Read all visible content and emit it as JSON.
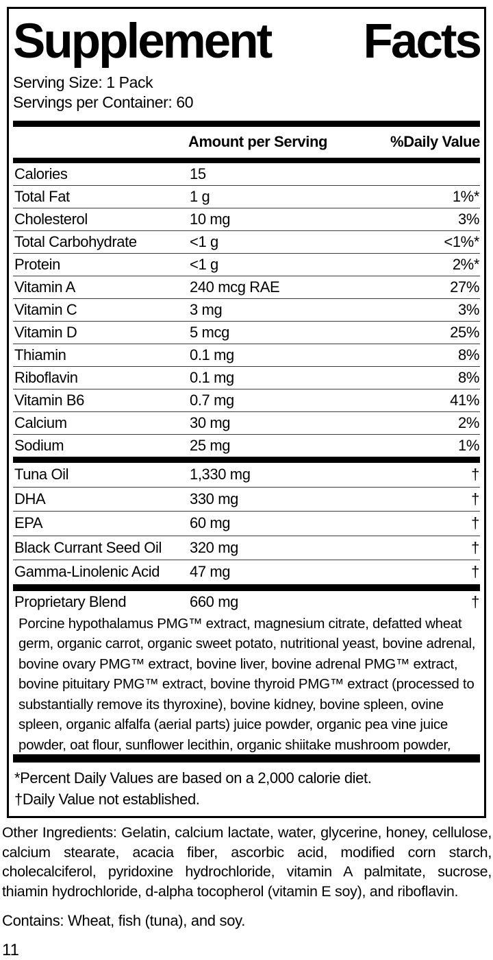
{
  "title_words": [
    "Supplement",
    "Facts"
  ],
  "serving": {
    "size": "Serving Size: 1 Pack",
    "per_container": "Servings per Container: 60"
  },
  "table": {
    "header": {
      "amount": "Amount per Serving",
      "daily_value": "%Daily Value"
    },
    "sections": [
      {
        "rows": [
          {
            "name": "Calories",
            "amount": "15",
            "dv": ""
          },
          {
            "name": "Total Fat",
            "amount": "1 g",
            "dv": "1%*"
          },
          {
            "name": "Cholesterol",
            "amount": "10 mg",
            "dv": "3%"
          },
          {
            "name": "Total Carbohydrate",
            "amount": "<1 g",
            "dv": "<1%*"
          },
          {
            "name": "Protein",
            "amount": "<1 g",
            "dv": "2%*"
          },
          {
            "name": "Vitamin A",
            "amount": "240 mcg RAE",
            "dv": "27%"
          },
          {
            "name": "Vitamin C",
            "amount": "3 mg",
            "dv": "3%"
          },
          {
            "name": "Vitamin D",
            "amount": "5 mcg",
            "dv": "25%"
          },
          {
            "name": "Thiamin",
            "amount": "0.1 mg",
            "dv": "8%"
          },
          {
            "name": "Riboflavin",
            "amount": "0.1 mg",
            "dv": "8%"
          },
          {
            "name": "Vitamin B6",
            "amount": "0.7 mg",
            "dv": "41%"
          },
          {
            "name": "Calcium",
            "amount": "30 mg",
            "dv": "2%"
          },
          {
            "name": "Sodium",
            "amount": "25 mg",
            "dv": "1%"
          }
        ]
      },
      {
        "rows": [
          {
            "name": "Tuna Oil",
            "amount": "1,330 mg",
            "dv": "†"
          },
          {
            "name": "DHA",
            "amount": "330 mg",
            "dv": "†"
          },
          {
            "name": "EPA",
            "amount": "60 mg",
            "dv": "†"
          },
          {
            "name": "Black Currant Seed Oil",
            "amount": "320 mg",
            "dv": "†"
          },
          {
            "name": "Gamma-Linolenic Acid",
            "amount": "47 mg",
            "dv": "†"
          }
        ]
      },
      {
        "rows": [
          {
            "name": "Proprietary Blend",
            "amount": "660 mg",
            "dv": "†"
          }
        ],
        "note": "Porcine hypothalamus PMG™ extract, magnesium citrate, defatted wheat germ, organic carrot, organic sweet potato, nutritional yeast, bovine adrenal, bovine ovary PMG™ extract, bovine liver, bovine adrenal PMG™ extract, bovine pituitary PMG™ extract, bovine thyroid PMG™ extract (processed to substantially remove its thyroxine), bovine kidney, bovine spleen, ovine spleen, organic alfalfa (aerial parts) juice powder, organic pea vine juice powder, oat flour, sunflower lecithin, organic shiitake mushroom powder, organic reishi mushroom powder, and rice bran."
      }
    ]
  },
  "footnotes": [
    "*Percent Daily Values are based on a 2,000 calorie diet.",
    "†Daily Value not established."
  ],
  "other_ingredients": "Other Ingredients: Gelatin, calcium lactate, water, glycerine, honey, cellulose, calcium stearate, acacia fiber, ascorbic acid, modified corn starch, cholecalciferol, pyridoxine hydrochloride, vitamin A palmitate, sucrose, thiamin hydrochloride, d-alpha tocopherol (vitamin E soy), and riboflavin.",
  "contains": "Contains: Wheat, fish (tuna), and soy.",
  "page_number": "11",
  "colors": {
    "text": "#000000",
    "background": "#ffffff",
    "rule": "#3a3a3a",
    "bar": "#000000"
  }
}
